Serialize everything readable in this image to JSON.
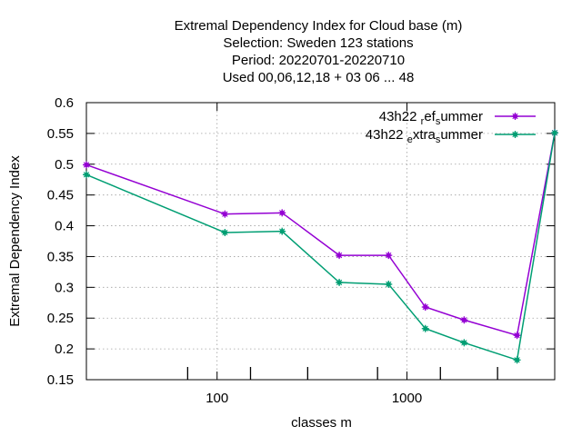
{
  "chart_data": {
    "type": "line",
    "title_lines": [
      "Extremal Dependency Index  for Cloud base (m)",
      "Selection: Sweden    123 stations",
      "Period: 20220701-20220710",
      "Used  00,06,12,18  + 03 06 ... 48"
    ],
    "xlabel": "classes m",
    "ylabel": "Extremal Dependency Index",
    "x_scale": "log",
    "xlim": [
      20.5,
      6000
    ],
    "ylim": [
      0.15,
      0.6
    ],
    "x_major_ticks": [
      100,
      1000
    ],
    "x_tick_labels": [
      "100",
      "1000"
    ],
    "x_minor_ticks": [
      70,
      150,
      300,
      700,
      1500,
      3000
    ],
    "y_ticks": [
      0.15,
      0.2,
      0.25,
      0.3,
      0.35,
      0.4,
      0.45,
      0.5,
      0.55,
      0.6
    ],
    "y_tick_labels": [
      "0.15",
      "0.2",
      "0.25",
      "0.3",
      "0.35",
      "0.4",
      "0.45",
      "0.5",
      "0.55",
      "0.6"
    ],
    "grid": true,
    "legend_position": "top-right",
    "series": [
      {
        "name_parts": [
          {
            "t": "43h22 ",
            "sub": false
          },
          {
            "t": "r",
            "sub": true
          },
          {
            "t": "ef",
            "sub": false
          },
          {
            "t": "s",
            "sub": true
          },
          {
            "t": "ummer",
            "sub": false
          }
        ],
        "color": "#9400d3",
        "x": [
          20.5,
          110,
          220,
          440,
          800,
          1250,
          2000,
          3800,
          6000
        ],
        "y": [
          0.499,
          0.419,
          0.421,
          0.352,
          0.352,
          0.268,
          0.247,
          0.222,
          0.551
        ]
      },
      {
        "name_parts": [
          {
            "t": "43h22 ",
            "sub": false
          },
          {
            "t": "e",
            "sub": true
          },
          {
            "t": "xtra",
            "sub": false
          },
          {
            "t": "s",
            "sub": true
          },
          {
            "t": "ummer",
            "sub": false
          }
        ],
        "color": "#009e73",
        "x": [
          20.5,
          110,
          220,
          440,
          800,
          1250,
          2000,
          3800,
          6000
        ],
        "y": [
          0.483,
          0.389,
          0.391,
          0.308,
          0.305,
          0.233,
          0.21,
          0.182,
          0.551
        ]
      }
    ]
  }
}
